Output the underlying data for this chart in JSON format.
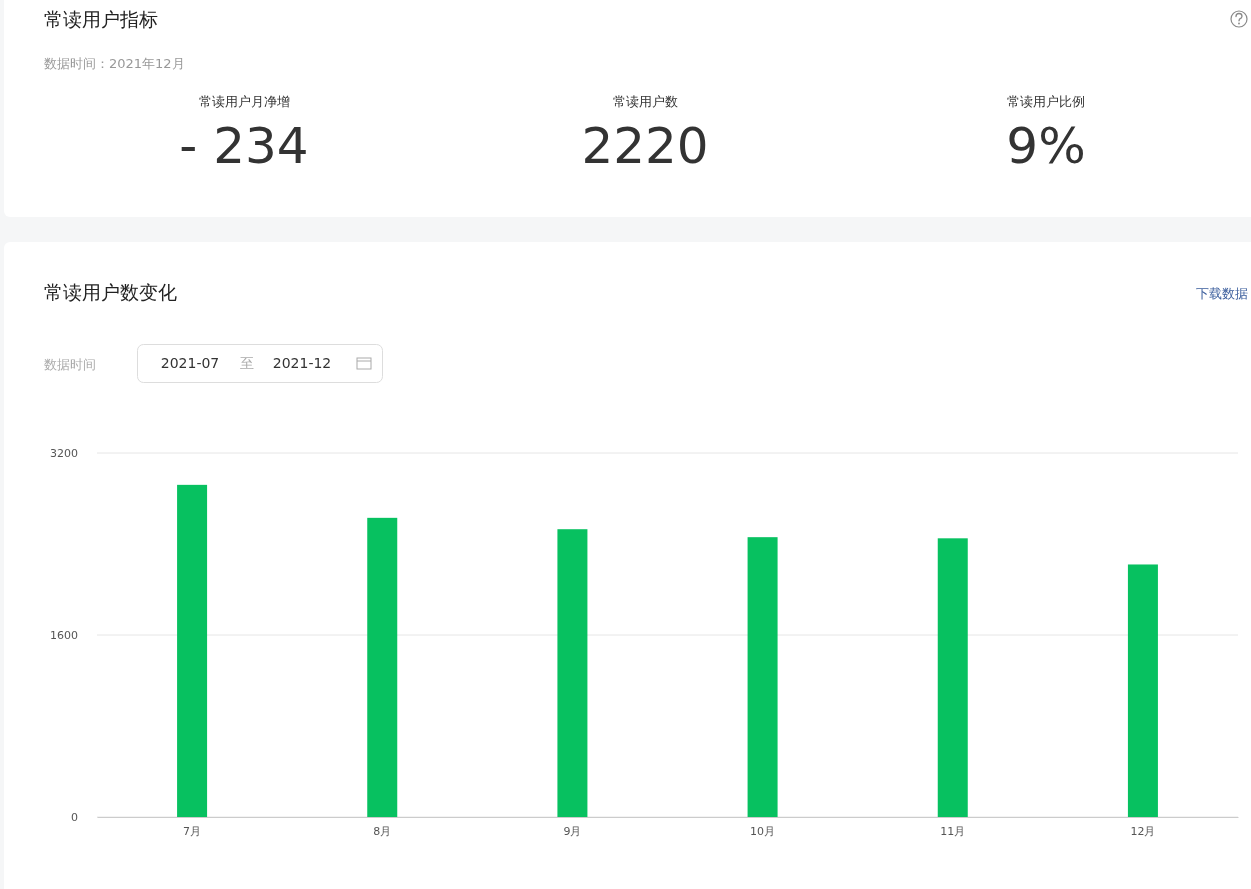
{
  "chart_data": [
    {
      "type": "other",
      "title": "常读用户指标",
      "subtitle": "数据时间：2021年12月",
      "annotations": [
        "常读用户月净增",
        "- 234",
        "常读用户数",
        "2220",
        "常读用户比例",
        "9%"
      ]
    },
    {
      "type": "bar",
      "title": "常读用户数变化",
      "annotations": [
        "下载数据",
        "数据时间",
        "2021-07",
        "至",
        "2021-12"
      ],
      "categories": [
        "7月",
        "8月",
        "9月",
        "10月",
        "11月",
        "12月"
      ],
      "values": [
        2920,
        2630,
        2530,
        2460,
        2450,
        2220
      ],
      "color": "#07c160",
      "ylim": [
        0,
        3200
      ],
      "yticks": [
        0,
        1600,
        3200
      ],
      "grid": "y"
    }
  ]
}
